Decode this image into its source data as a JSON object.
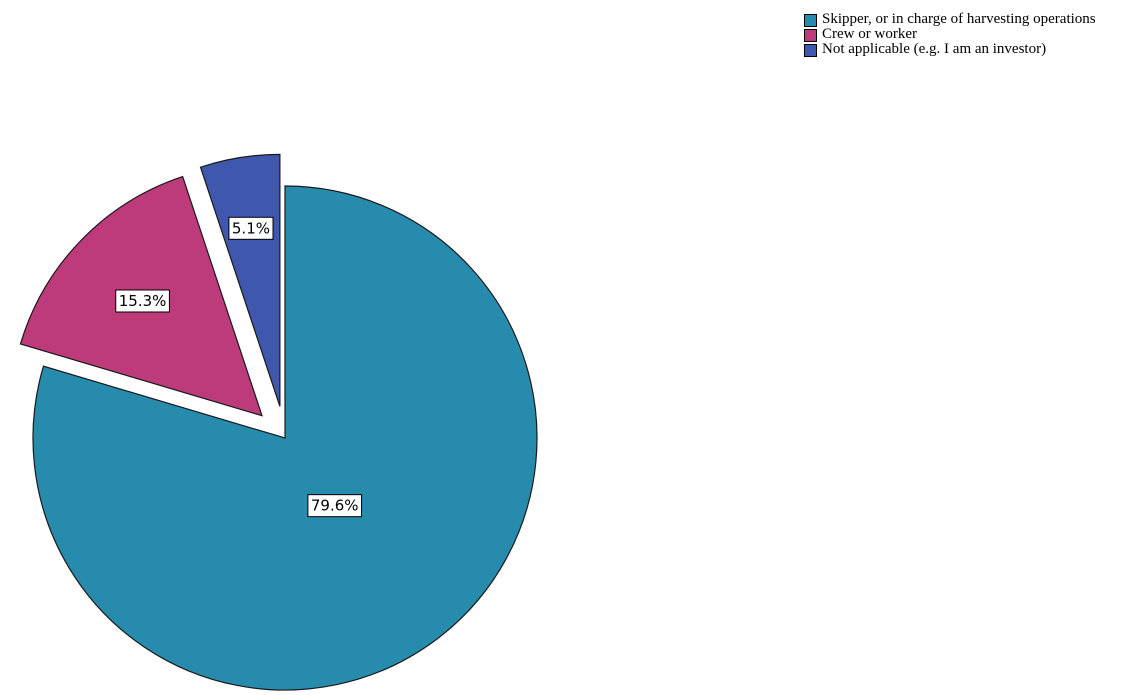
{
  "chart_data": {
    "type": "pie",
    "title": "",
    "start_angle_deg": 0,
    "direction": "clockwise",
    "exploded": [
      false,
      true,
      true
    ],
    "series": [
      {
        "name": "",
        "categories": [
          "Skipper, or in charge of harvesting operations",
          "Crew or worker",
          "Not applicable (e.g. I am an investor)"
        ],
        "values": [
          79.6,
          15.3,
          5.1
        ],
        "colors": [
          "#268bac",
          "#bd3b7a",
          "#3f57ad"
        ],
        "data_labels": [
          "79.6%",
          "15.3%",
          "5.1%"
        ]
      }
    ],
    "legend": {
      "placement": "top-right",
      "entries": [
        {
          "label": "Skipper, or in charge of harvesting operations",
          "color": "#268bac"
        },
        {
          "label": "Crew or worker",
          "color": "#bd3b7a"
        },
        {
          "label": "Not applicable (e.g. I am an investor)",
          "color": "#3f57ad"
        }
      ]
    }
  }
}
